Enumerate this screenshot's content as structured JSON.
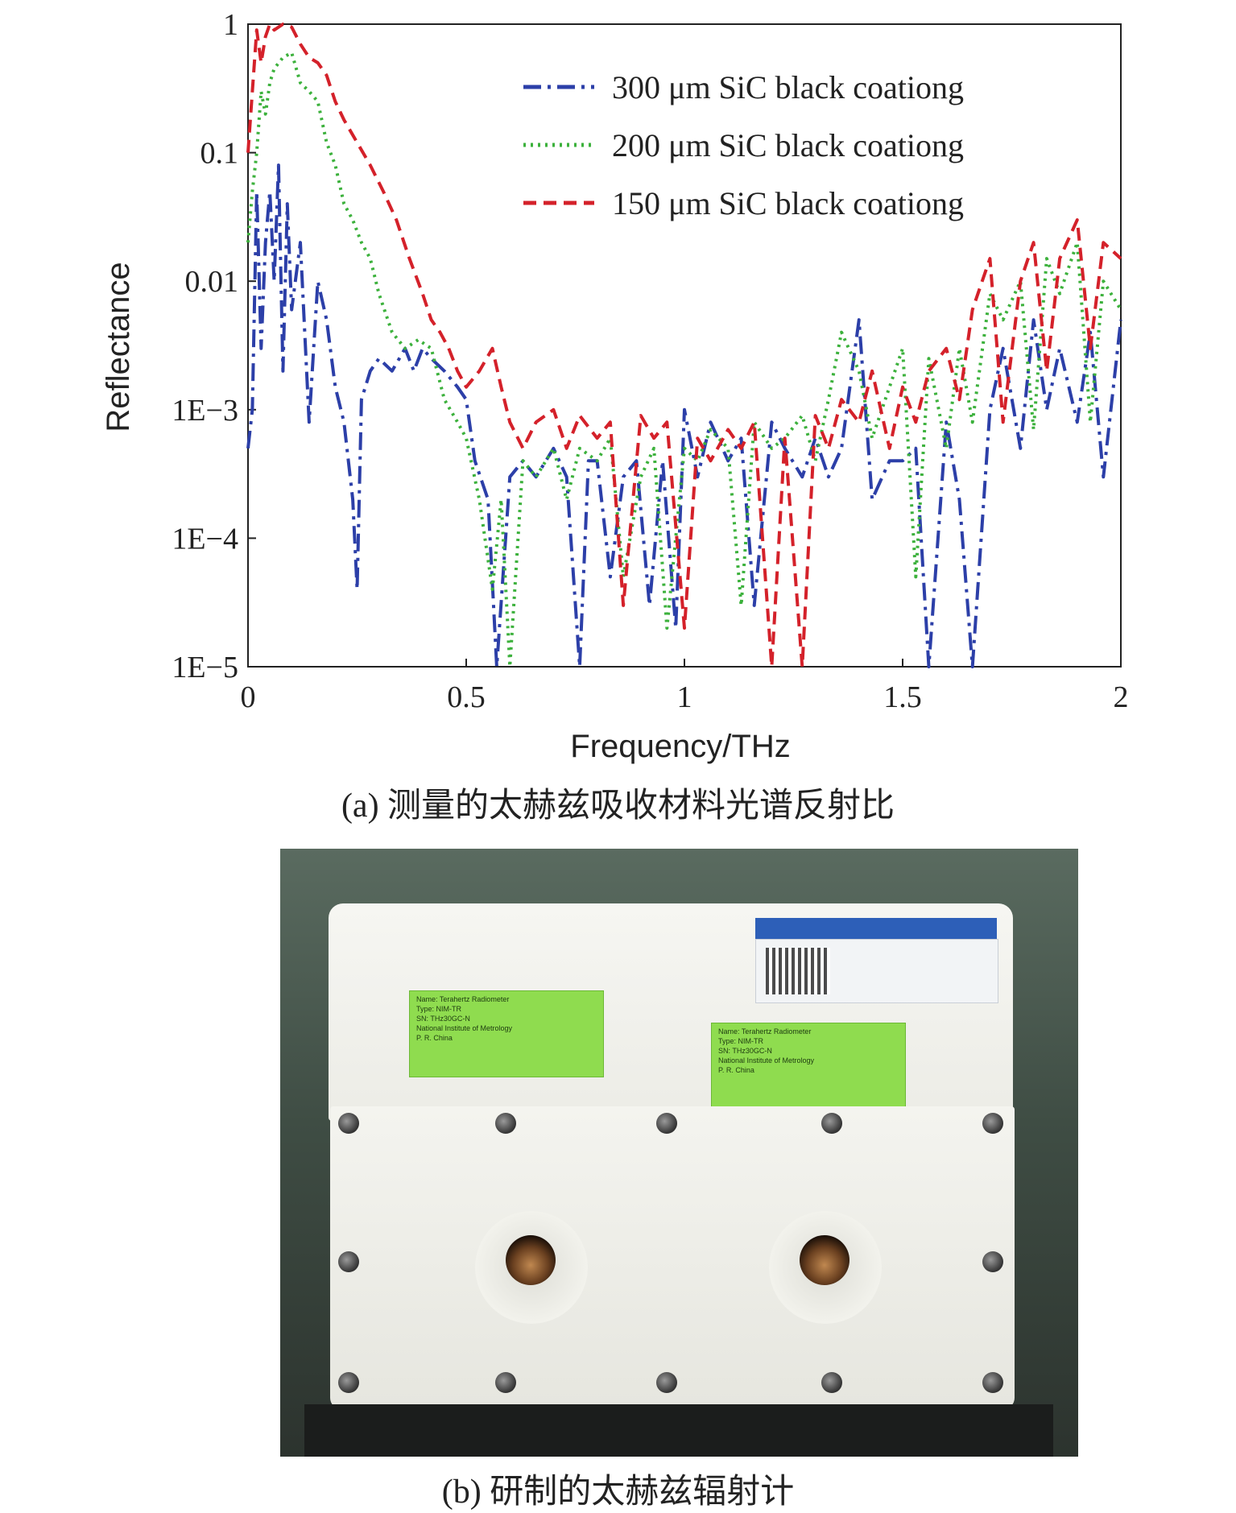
{
  "figure": {
    "caption_a": "(a) 测量的太赫兹吸收材料光谱反射比",
    "caption_b": "(b) 研制的太赫兹辐射计"
  },
  "chart_data": {
    "type": "line",
    "xlabel": "Frequency/THz",
    "ylabel": "Reflectance",
    "xlim": [
      0,
      2
    ],
    "ylim": [
      1e-05,
      1
    ],
    "yscale": "log",
    "xticks": [
      0,
      0.5,
      1,
      1.5,
      2
    ],
    "xtick_labels": [
      "0",
      "0.5",
      "1",
      "1.5",
      "2"
    ],
    "yticks": [
      1e-05,
      0.0001,
      0.001,
      0.01,
      0.1,
      1
    ],
    "ytick_labels": [
      "1E−5",
      "1E−4",
      "1E−3",
      "0.01",
      "0.1",
      "1"
    ],
    "grid": false,
    "legend_position": "top-right",
    "series": [
      {
        "name": "300 μm SiC black coationg",
        "color": "#2c3fa8",
        "style": "dashdot",
        "x": [
          0.0,
          0.01,
          0.02,
          0.03,
          0.04,
          0.05,
          0.06,
          0.07,
          0.08,
          0.09,
          0.1,
          0.12,
          0.14,
          0.16,
          0.18,
          0.2,
          0.22,
          0.24,
          0.25,
          0.26,
          0.28,
          0.3,
          0.33,
          0.36,
          0.38,
          0.4,
          0.42,
          0.45,
          0.48,
          0.5,
          0.52,
          0.55,
          0.57,
          0.6,
          0.63,
          0.66,
          0.7,
          0.73,
          0.76,
          0.78,
          0.8,
          0.83,
          0.86,
          0.89,
          0.92,
          0.95,
          0.98,
          1.0,
          1.03,
          1.06,
          1.1,
          1.13,
          1.16,
          1.2,
          1.23,
          1.27,
          1.3,
          1.33,
          1.36,
          1.4,
          1.43,
          1.47,
          1.5,
          1.53,
          1.56,
          1.6,
          1.63,
          1.66,
          1.7,
          1.73,
          1.77,
          1.8,
          1.83,
          1.86,
          1.9,
          1.93,
          1.96,
          2.0
        ],
        "values": [
          0.0005,
          0.001,
          0.05,
          0.003,
          0.02,
          0.05,
          0.01,
          0.08,
          0.002,
          0.04,
          0.006,
          0.02,
          0.0008,
          0.01,
          0.005,
          0.0015,
          0.0008,
          0.0002,
          4e-05,
          0.0012,
          0.002,
          0.0025,
          0.002,
          0.003,
          0.002,
          0.003,
          0.0025,
          0.002,
          0.0015,
          0.0012,
          0.0004,
          0.0002,
          1e-05,
          0.0003,
          0.0004,
          0.0003,
          0.0005,
          0.0003,
          1e-05,
          0.0004,
          0.0004,
          5e-05,
          0.0003,
          0.0004,
          3e-05,
          0.0004,
          2e-05,
          0.001,
          0.0003,
          0.0008,
          0.0004,
          0.0006,
          3e-05,
          0.0008,
          0.0005,
          0.0003,
          0.0006,
          0.0003,
          0.0005,
          0.005,
          0.0002,
          0.0004,
          0.0004,
          0.0005,
          1e-05,
          0.0008,
          0.0002,
          1e-05,
          0.001,
          0.003,
          0.0005,
          0.005,
          0.001,
          0.003,
          0.0008,
          0.004,
          0.0003,
          0.005
        ]
      },
      {
        "name": "200 μm SiC black coationg",
        "color": "#3cb13c",
        "style": "dotted",
        "x": [
          0.0,
          0.01,
          0.02,
          0.03,
          0.04,
          0.05,
          0.06,
          0.08,
          0.1,
          0.12,
          0.14,
          0.16,
          0.18,
          0.2,
          0.22,
          0.24,
          0.26,
          0.28,
          0.3,
          0.33,
          0.36,
          0.39,
          0.42,
          0.45,
          0.48,
          0.5,
          0.53,
          0.56,
          0.58,
          0.6,
          0.63,
          0.66,
          0.7,
          0.73,
          0.76,
          0.8,
          0.83,
          0.86,
          0.9,
          0.93,
          0.96,
          1.0,
          1.03,
          1.06,
          1.1,
          1.13,
          1.16,
          1.2,
          1.23,
          1.27,
          1.3,
          1.33,
          1.36,
          1.4,
          1.43,
          1.47,
          1.5,
          1.53,
          1.56,
          1.6,
          1.63,
          1.66,
          1.7,
          1.73,
          1.77,
          1.8,
          1.83,
          1.86,
          1.9,
          1.93,
          1.96,
          2.0
        ],
        "values": [
          0.02,
          0.05,
          0.1,
          0.3,
          0.2,
          0.35,
          0.45,
          0.55,
          0.6,
          0.35,
          0.3,
          0.25,
          0.12,
          0.08,
          0.04,
          0.03,
          0.02,
          0.015,
          0.008,
          0.004,
          0.003,
          0.0035,
          0.003,
          0.0012,
          0.0008,
          0.0006,
          0.0002,
          4e-05,
          0.0002,
          1e-05,
          0.0004,
          0.0003,
          0.0005,
          0.0002,
          0.0005,
          0.0004,
          0.0006,
          5e-05,
          0.0003,
          0.0005,
          2e-05,
          0.0005,
          0.0004,
          0.0007,
          0.0005,
          3e-05,
          0.0008,
          0.0005,
          0.0006,
          0.0009,
          0.0004,
          0.0012,
          0.004,
          0.002,
          0.0006,
          0.0015,
          0.003,
          5e-05,
          0.0025,
          0.0005,
          0.003,
          0.0008,
          0.008,
          0.005,
          0.01,
          0.0007,
          0.015,
          0.008,
          0.02,
          0.0008,
          0.01,
          0.006
        ]
      },
      {
        "name": "150 μm SiC black coationg",
        "color": "#d4212a",
        "style": "dashed",
        "x": [
          0.0,
          0.01,
          0.02,
          0.03,
          0.04,
          0.05,
          0.06,
          0.08,
          0.1,
          0.12,
          0.14,
          0.16,
          0.18,
          0.2,
          0.22,
          0.25,
          0.28,
          0.31,
          0.34,
          0.37,
          0.4,
          0.42,
          0.44,
          0.46,
          0.48,
          0.5,
          0.53,
          0.56,
          0.58,
          0.6,
          0.63,
          0.66,
          0.7,
          0.73,
          0.76,
          0.8,
          0.83,
          0.86,
          0.9,
          0.93,
          0.96,
          1.0,
          1.03,
          1.06,
          1.1,
          1.13,
          1.16,
          1.2,
          1.23,
          1.27,
          1.3,
          1.33,
          1.36,
          1.4,
          1.43,
          1.47,
          1.5,
          1.53,
          1.56,
          1.6,
          1.63,
          1.66,
          1.7,
          1.73,
          1.77,
          1.8,
          1.83,
          1.86,
          1.9,
          1.93,
          1.96,
          2.0
        ],
        "values": [
          0.1,
          0.3,
          0.9,
          0.5,
          0.8,
          1.0,
          0.9,
          1.0,
          0.95,
          0.7,
          0.55,
          0.5,
          0.4,
          0.25,
          0.18,
          0.12,
          0.08,
          0.05,
          0.03,
          0.015,
          0.008,
          0.005,
          0.004,
          0.003,
          0.002,
          0.0015,
          0.002,
          0.003,
          0.0015,
          0.0008,
          0.0005,
          0.0008,
          0.001,
          0.0005,
          0.0009,
          0.0006,
          0.0008,
          3e-05,
          0.0009,
          0.0006,
          0.0008,
          2e-05,
          0.0006,
          0.0004,
          0.0007,
          0.0005,
          0.0008,
          1e-05,
          0.0006,
          1e-05,
          0.0009,
          0.0005,
          0.0012,
          0.0008,
          0.002,
          0.0005,
          0.0015,
          0.0008,
          0.002,
          0.003,
          0.0012,
          0.006,
          0.015,
          0.0008,
          0.01,
          0.02,
          0.002,
          0.015,
          0.03,
          0.003,
          0.02,
          0.015
        ]
      }
    ]
  },
  "photo": {
    "label_lines": [
      "Name: Terahertz Radiometer",
      "Type: NIM-TR",
      "SN: THz30GC-N",
      "National Institute of Metrology",
      "P. R. China"
    ]
  }
}
